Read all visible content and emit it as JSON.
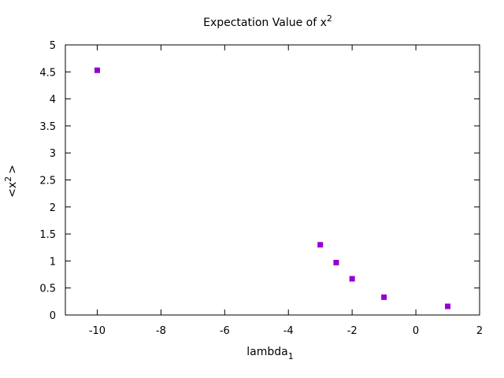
{
  "chart_data": {
    "type": "scatter",
    "title": {
      "base": "Expectation Value of x",
      "sup": "2"
    },
    "xlabel": {
      "base": "lambda",
      "sub": "1"
    },
    "ylabel": {
      "prefix": "<x",
      "sup": "2",
      "suffix": ">"
    },
    "xlim": [
      -11,
      2
    ],
    "ylim": [
      0,
      5
    ],
    "xticks": [
      -10,
      -8,
      -6,
      -4,
      -2,
      0,
      2
    ],
    "yticks": [
      0,
      0.5,
      1,
      1.5,
      2,
      2.5,
      3,
      3.5,
      4,
      4.5,
      5
    ],
    "grid": false,
    "series": [
      {
        "color": "#9400d3",
        "marker": "square",
        "x": [
          -10,
          -3,
          -2.5,
          -2,
          -1,
          1
        ],
        "y": [
          4.53,
          1.3,
          0.97,
          0.67,
          0.33,
          0.16
        ]
      }
    ]
  }
}
